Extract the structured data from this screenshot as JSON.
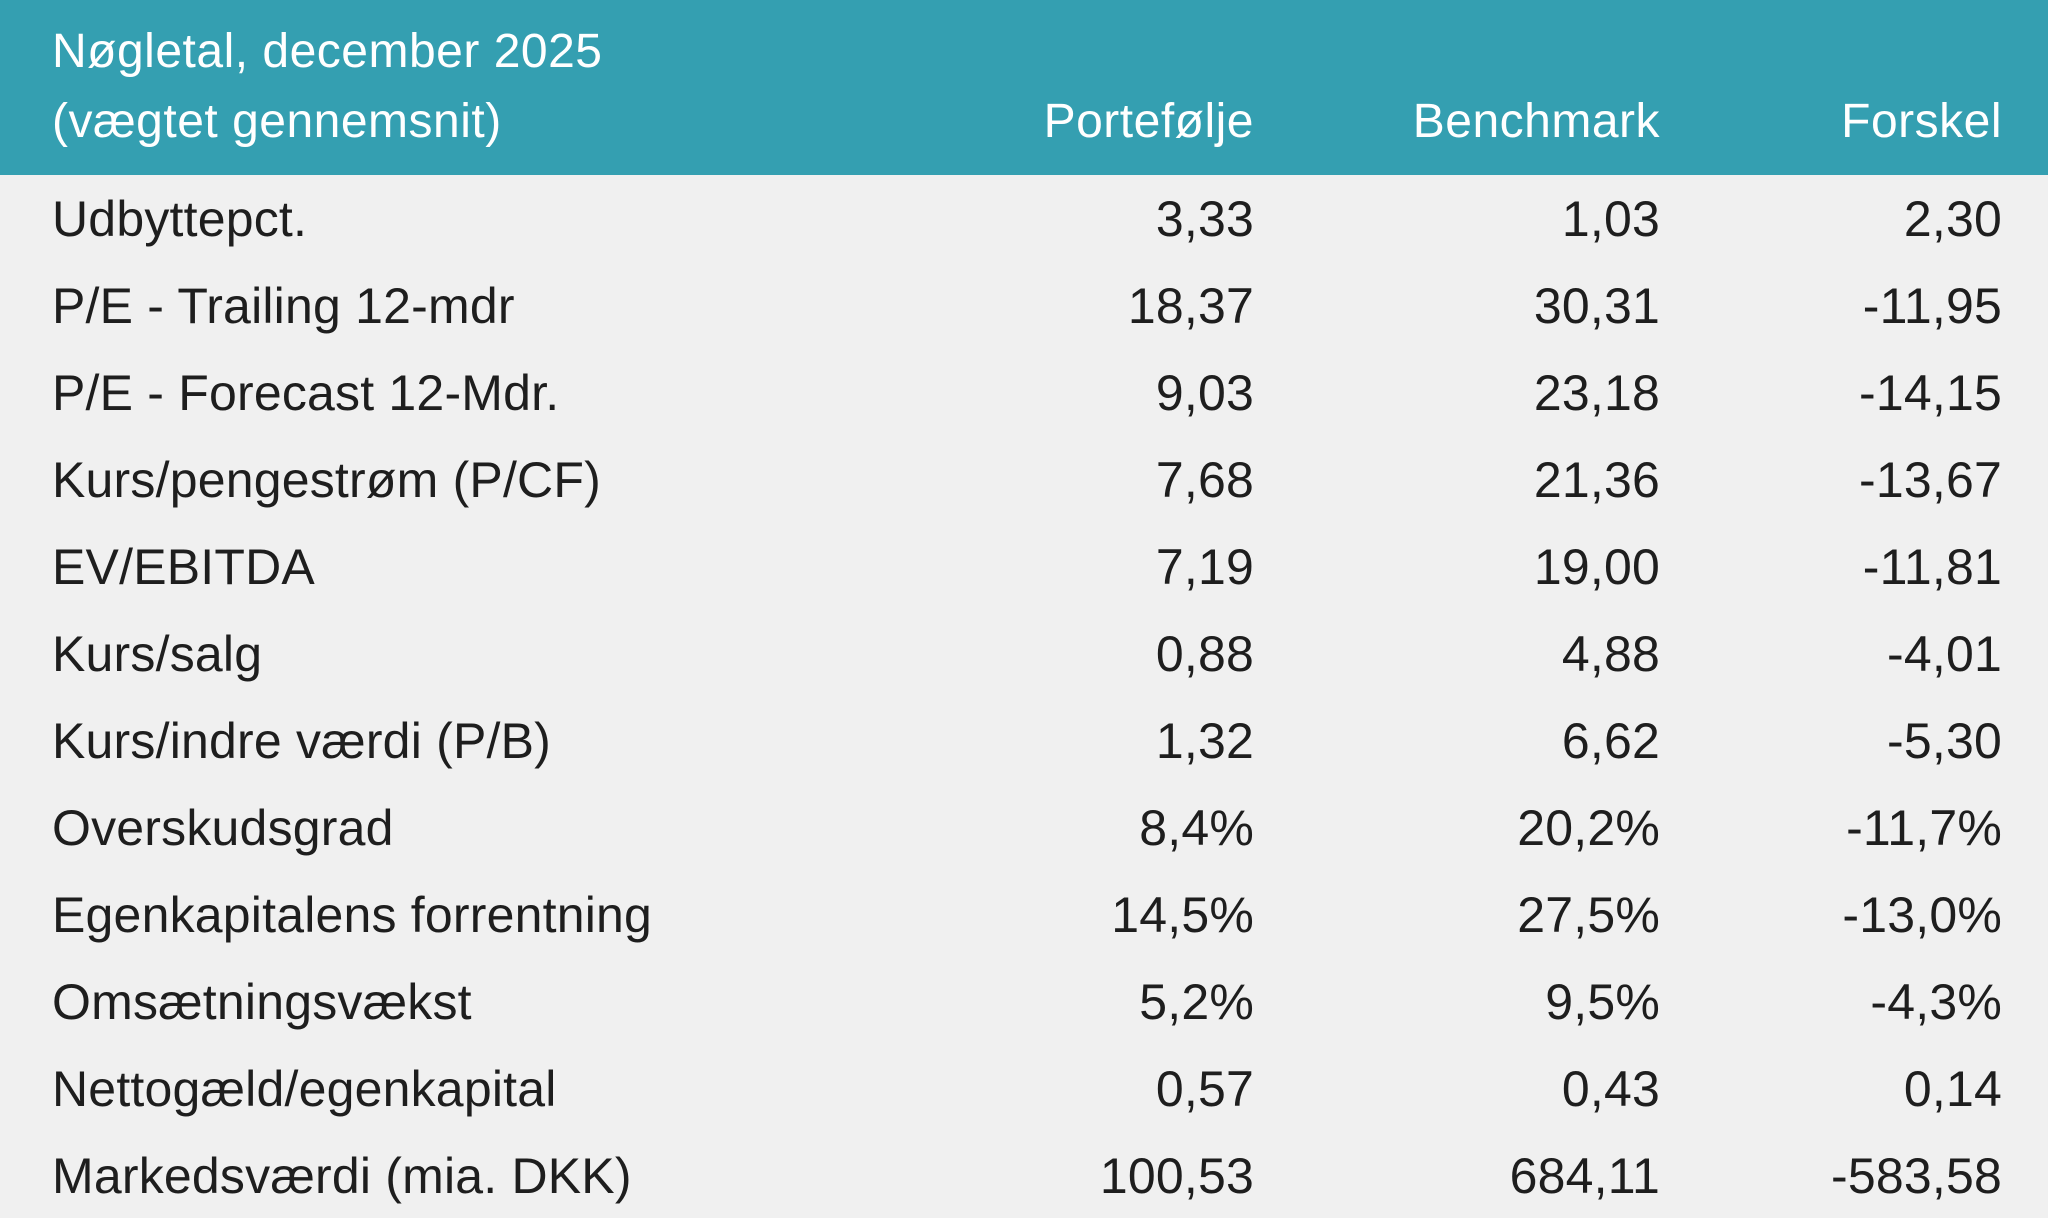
{
  "header": {
    "title": "Nøgletal, december 2025",
    "subtitle": "(vægtet gennemsnit)",
    "columns": {
      "portfolio": "Portefølje",
      "benchmark": "Benchmark",
      "forskel": "Forskel"
    },
    "background_color": "#349fb1",
    "text_color": "#ffffff"
  },
  "table": {
    "body_background": "#f0f0f0",
    "text_color": "#1e1e1e",
    "rows": [
      {
        "label": "Udbyttepct.",
        "portfolio": "3,33",
        "benchmark": "1,03",
        "forskel": "2,30"
      },
      {
        "label": "P/E - Trailing 12-mdr",
        "portfolio": "18,37",
        "benchmark": "30,31",
        "forskel": "-11,95"
      },
      {
        "label": "P/E - Forecast 12-Mdr.",
        "portfolio": "9,03",
        "benchmark": "23,18",
        "forskel": "-14,15"
      },
      {
        "label": "Kurs/pengestrøm (P/CF)",
        "portfolio": "7,68",
        "benchmark": "21,36",
        "forskel": "-13,67"
      },
      {
        "label": "EV/EBITDA",
        "portfolio": "7,19",
        "benchmark": "19,00",
        "forskel": "-11,81"
      },
      {
        "label": "Kurs/salg",
        "portfolio": "0,88",
        "benchmark": "4,88",
        "forskel": "-4,01"
      },
      {
        "label": "Kurs/indre værdi (P/B)",
        "portfolio": "1,32",
        "benchmark": "6,62",
        "forskel": "-5,30"
      },
      {
        "label": "Overskudsgrad",
        "portfolio": "8,4%",
        "benchmark": "20,2%",
        "forskel": "-11,7%"
      },
      {
        "label": "Egenkapitalens forrentning",
        "portfolio": "14,5%",
        "benchmark": "27,5%",
        "forskel": "-13,0%"
      },
      {
        "label": "Omsætningsvækst",
        "portfolio": "5,2%",
        "benchmark": "9,5%",
        "forskel": "-4,3%"
      },
      {
        "label": "Nettogæld/egenkapital",
        "portfolio": "0,57",
        "benchmark": "0,43",
        "forskel": "0,14"
      },
      {
        "label": "Markedsværdi (mia. DKK)",
        "portfolio": "100,53",
        "benchmark": "684,11",
        "forskel": "-583,58"
      }
    ]
  }
}
